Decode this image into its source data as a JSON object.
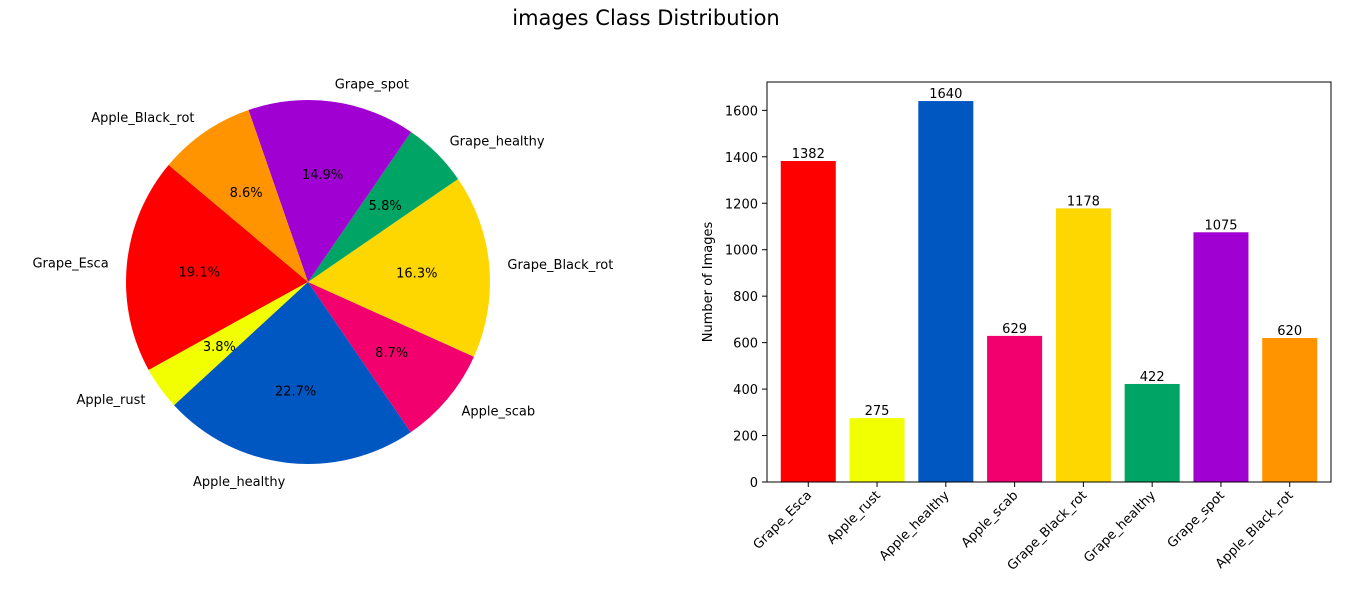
{
  "figure_title": "images Class Distribution",
  "chart_data": [
    {
      "type": "pie",
      "labels": [
        "Grape_Esca",
        "Apple_rust",
        "Apple_healthy",
        "Apple_scab",
        "Grape_Black_rot",
        "Grape_healthy",
        "Grape_spot",
        "Apple_Black_rot"
      ],
      "values": [
        1382,
        275,
        1640,
        629,
        1178,
        422,
        1075,
        620
      ],
      "pct_labels": [
        "19.1%",
        "3.8%",
        "22.7%",
        "8.7%",
        "16.3%",
        "5.8%",
        "14.9%",
        "8.6%"
      ],
      "colors": [
        "#ff0000",
        "#f2ff00",
        "#0057c2",
        "#f2006e",
        "#ffd700",
        "#00a464",
        "#a100d2",
        "#ff9400"
      ],
      "start_angle_deg": 140,
      "direction": "counterclockwise"
    },
    {
      "type": "bar",
      "categories": [
        "Grape_Esca",
        "Apple_rust",
        "Apple_healthy",
        "Apple_scab",
        "Grape_Black_rot",
        "Grape_healthy",
        "Grape_spot",
        "Apple_Black_rot"
      ],
      "values": [
        1382,
        275,
        1640,
        629,
        1178,
        422,
        1075,
        620
      ],
      "colors": [
        "#ff0000",
        "#f2ff00",
        "#0057c2",
        "#f2006e",
        "#ffd700",
        "#00a464",
        "#a100d2",
        "#ff9400"
      ],
      "ylabel": "Number of Images",
      "xlabel": "",
      "ylim": [
        0,
        1722
      ],
      "yticks": [
        0,
        200,
        400,
        600,
        800,
        1000,
        1200,
        1400,
        1600
      ],
      "grid": false,
      "xtick_rotation_deg": 45
    }
  ]
}
